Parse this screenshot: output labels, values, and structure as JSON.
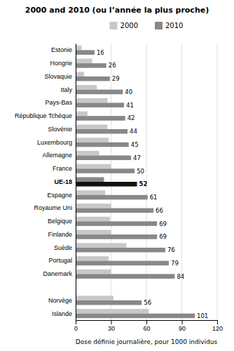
{
  "chart_data": {
    "type": "bar",
    "orientation": "horizontal",
    "title": "2000 and 2010 (ou l’année la plus proche)",
    "x_label": "Dose définie journalière, pour 1000 individus",
    "categories": [
      "Estonie",
      "Hongrie",
      "Slovaquie",
      "Italy",
      "Pays-Bas",
      "République Tchèque",
      "Slovénie",
      "Luxembourg",
      "Allemagne",
      "France",
      "UE-18",
      "Espagne",
      "Royaume Uni",
      "Belgique",
      "Finlande",
      "Suède",
      "Portugal",
      "Danemark",
      null,
      "Norvège",
      "Islande"
    ],
    "series": [
      {
        "name": "2000",
        "color": "#c8c8c8",
        "colors": [
          "#c8c8c8",
          "#c8c8c8",
          "#c8c8c8",
          "#c8c8c8",
          "#c8c8c8",
          "#c8c8c8",
          "#c8c8c8",
          "#c8c8c8",
          "#c8c8c8",
          "#c8c8c8",
          "#888888",
          "#c8c8c8",
          "#c8c8c8",
          "#c8c8c8",
          "#c8c8c8",
          "#c8c8c8",
          "#c8c8c8",
          "#c8c8c8",
          "#c8c8c8",
          "#c8c8c8",
          "#c8c8c8"
        ],
        "values": [
          5,
          14,
          7,
          18,
          27,
          10,
          27,
          28,
          20,
          30,
          24,
          25,
          30,
          29,
          30,
          43,
          28,
          30,
          null,
          32,
          62
        ]
      },
      {
        "name": "2010",
        "color": "#888888",
        "data_labels": true,
        "colors": [
          "#888888",
          "#888888",
          "#888888",
          "#888888",
          "#888888",
          "#888888",
          "#888888",
          "#888888",
          "#888888",
          "#888888",
          "#111111",
          "#888888",
          "#888888",
          "#888888",
          "#888888",
          "#888888",
          "#888888",
          "#888888",
          "#888888",
          "#888888",
          "#888888"
        ],
        "values": [
          16,
          26,
          29,
          40,
          41,
          42,
          44,
          45,
          47,
          50,
          52,
          61,
          66,
          69,
          69,
          76,
          79,
          84,
          null,
          56,
          101
        ]
      }
    ],
    "xlim": [
      0,
      120
    ],
    "xticks": [
      0,
      30,
      60,
      90,
      120
    ],
    "grid": true
  }
}
